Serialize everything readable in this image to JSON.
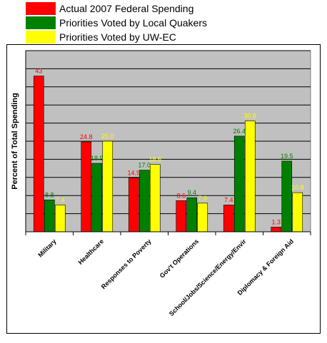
{
  "chart_data": {
    "type": "bar",
    "title": "",
    "xlabel": "",
    "ylabel": "Percent of Total Spending",
    "ylim": [
      0,
      50
    ],
    "grid": true,
    "legend_position": "top-left",
    "categories": [
      "Military",
      "Healthcare",
      "Responses to Poverty",
      "Gov't Operations",
      "School/Jobs/Science/Energy/Envir",
      "Diplomacy & Foreign Aid"
    ],
    "series": [
      {
        "name": "Actual 2007 Federal Spending",
        "color": "#ff0000",
        "label_color": "#ff0000",
        "values": [
          43,
          24.8,
          14.9,
          8.6,
          7.4,
          1.3
        ],
        "labels": [
          "43",
          "24.8",
          "14.9",
          "8.6",
          "7.4",
          "1.3"
        ]
      },
      {
        "name": "Priorities Voted by Local Quakers",
        "color": "#008000",
        "label_color": "#008000",
        "values": [
          8.8,
          18.9,
          17.0,
          9.4,
          26.4,
          19.5
        ],
        "labels": [
          "8.8",
          "18.9",
          "17.0",
          "9.4",
          "26.4",
          "19.5"
        ]
      },
      {
        "name": "Priorities Voted by UW-EC",
        "color": "#ffff00",
        "label_color": "#ffff00",
        "values": [
          7.4,
          25.0,
          18.6,
          7.9,
          30.6,
          10.8
        ],
        "labels": [
          "7.4",
          "25.0",
          "18.6",
          "7.9",
          "30.6",
          "10.8"
        ]
      }
    ]
  }
}
